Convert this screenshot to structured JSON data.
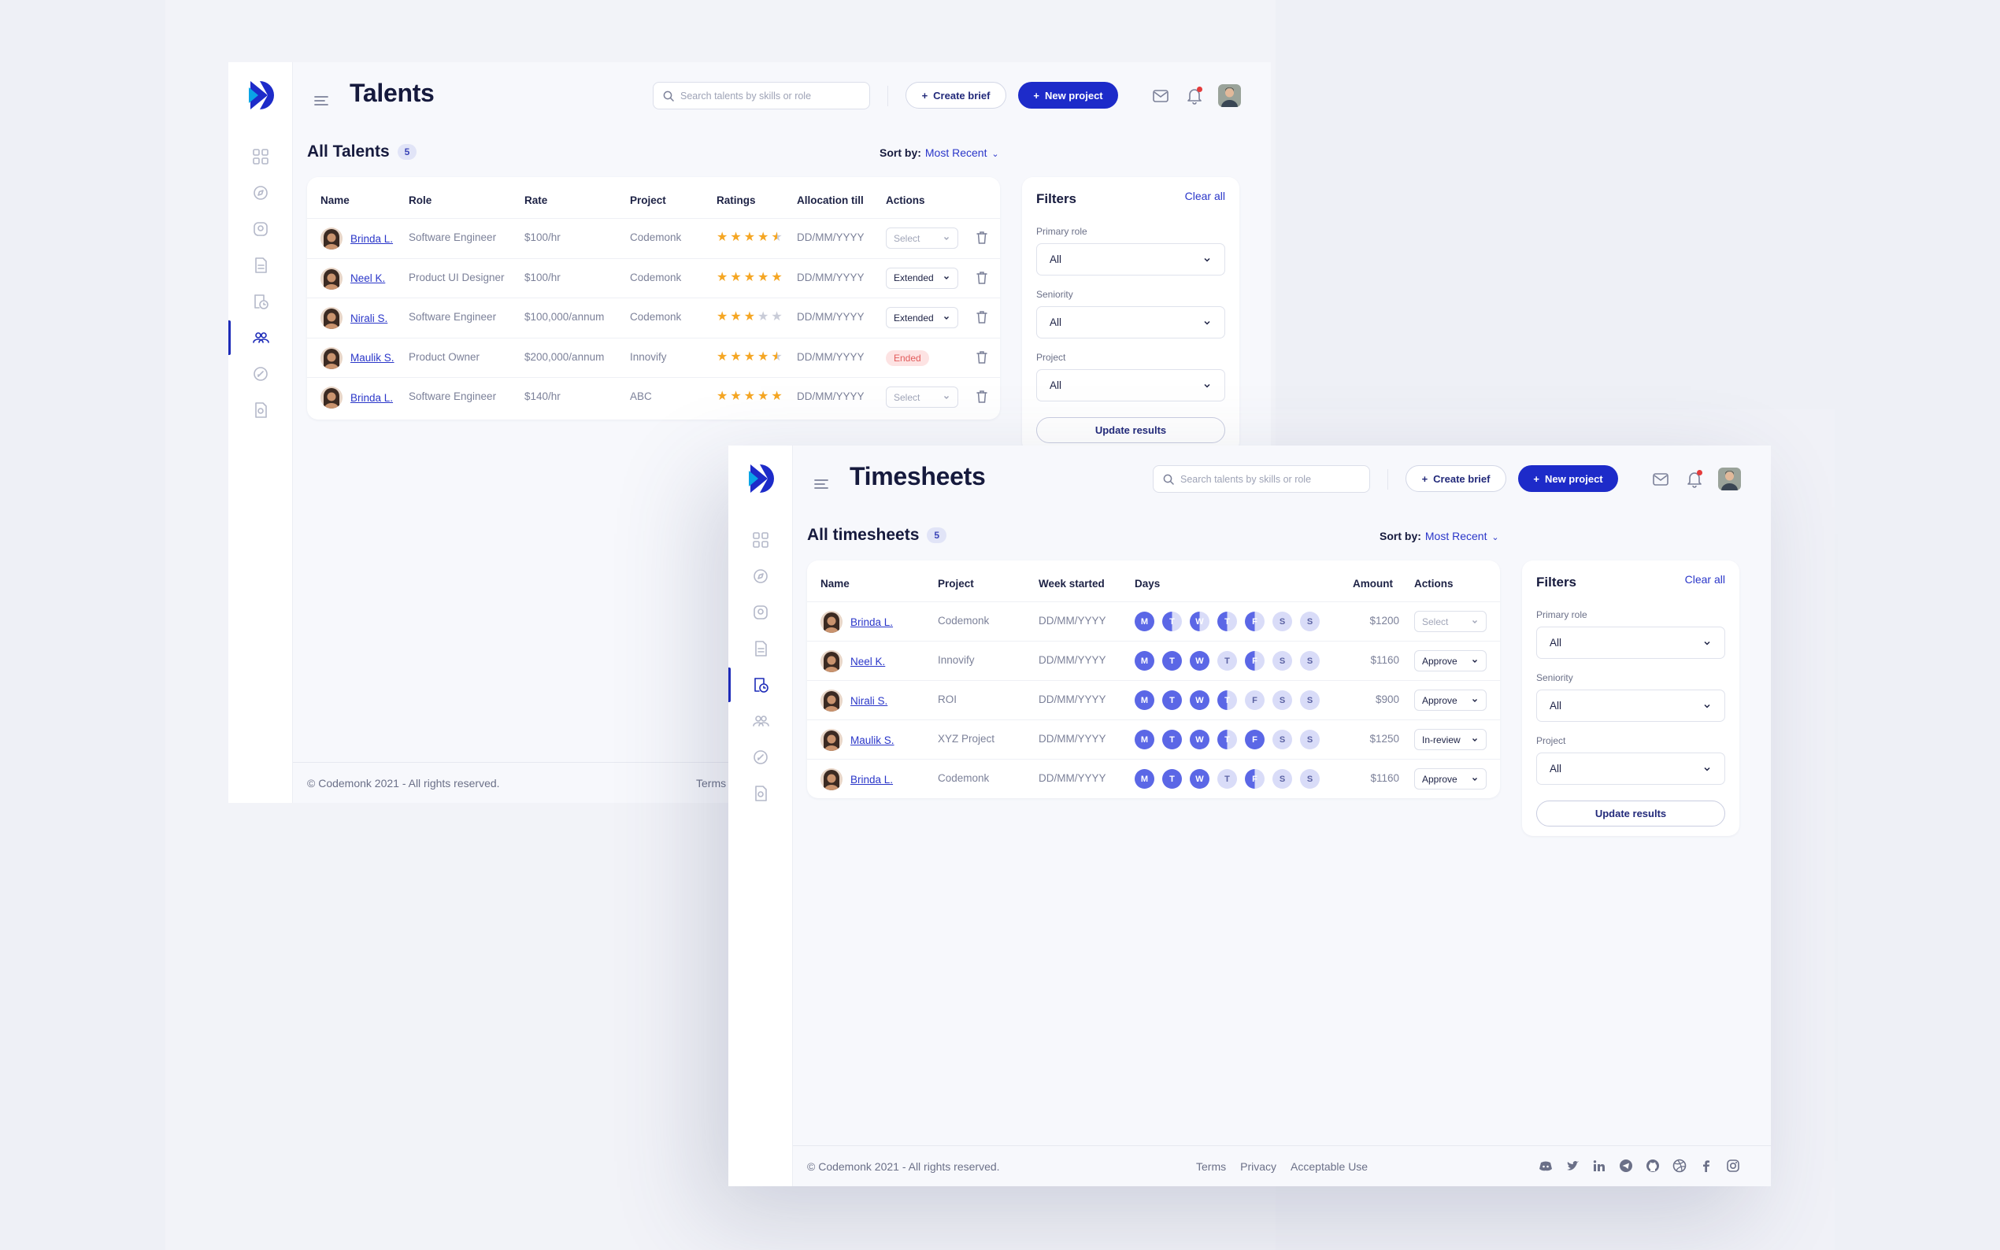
{
  "talents_window": {
    "title": "Talents",
    "search_placeholder": "Search talents by skills or role",
    "create_brief": "Create brief",
    "new_project": "New project",
    "section_title": "All Talents",
    "count": "5",
    "sort_label": "Sort by:",
    "sort_value": "Most Recent",
    "columns": [
      "Name",
      "Role",
      "Rate",
      "Project",
      "Ratings",
      "Allocation till",
      "Actions"
    ],
    "rows": [
      {
        "name": "Brinda L.",
        "role": "Software Engineer",
        "rate": "$100/hr",
        "project": "Codemonk",
        "rating": 4.5,
        "allocation": "DD/MM/YYYY",
        "action": "Select"
      },
      {
        "name": "Neel K.",
        "role": "Product UI Designer",
        "rate": "$100/hr",
        "project": "Codemonk",
        "rating": 5,
        "allocation": "DD/MM/YYYY",
        "action": "Extended"
      },
      {
        "name": "Nirali S.",
        "role": "Software Engineer",
        "rate": "$100,000/annum",
        "project": "Codemonk",
        "rating": 3,
        "allocation": "DD/MM/YYYY",
        "action": "Extended"
      },
      {
        "name": "Maulik S.",
        "role": "Product Owner",
        "rate": "$200,000/annum",
        "project": "Innovify",
        "rating": 4.5,
        "allocation": "DD/MM/YYYY",
        "action": "Ended"
      },
      {
        "name": "Brinda L.",
        "role": "Software Engineer",
        "rate": "$140/hr",
        "project": "ABC",
        "rating": 5,
        "allocation": "DD/MM/YYYY",
        "action": "Select"
      }
    ],
    "filters": {
      "title": "Filters",
      "clear": "Clear all",
      "primary_role_label": "Primary role",
      "primary_role_value": "All",
      "seniority_label": "Seniority",
      "seniority_value": "All",
      "project_label": "Project",
      "project_value": "All",
      "update": "Update results"
    },
    "footer_copy": "© Codemonk 2021 - All rights reserved.",
    "footer_terms": "Terms"
  },
  "timesheets_window": {
    "title": "Timesheets",
    "search_placeholder": "Search talents by skills or role",
    "create_brief": "Create brief",
    "new_project": "New project",
    "section_title": "All timesheets",
    "count": "5",
    "sort_label": "Sort by:",
    "sort_value": "Most Recent",
    "columns": [
      "Name",
      "Project",
      "Week started",
      "Days",
      "Amount",
      "Actions"
    ],
    "day_letters": [
      "M",
      "T",
      "W",
      "T",
      "F",
      "S",
      "S"
    ],
    "rows": [
      {
        "name": "Brinda L.",
        "project": "Codemonk",
        "week": "DD/MM/YYYY",
        "days": [
          "full",
          "half",
          "half",
          "half",
          "half",
          "empty",
          "empty"
        ],
        "amount": "$1200",
        "action": "Select"
      },
      {
        "name": "Neel K.",
        "project": "Innovify",
        "week": "DD/MM/YYYY",
        "days": [
          "full",
          "full",
          "full",
          "empty",
          "half",
          "empty",
          "empty"
        ],
        "amount": "$1160",
        "action": "Approve"
      },
      {
        "name": "Nirali S.",
        "project": "ROI",
        "week": "DD/MM/YYYY",
        "days": [
          "full",
          "full",
          "full",
          "half",
          "empty",
          "empty",
          "empty"
        ],
        "amount": "$900",
        "action": "Approve"
      },
      {
        "name": "Maulik S.",
        "project": "XYZ Project",
        "week": "DD/MM/YYYY",
        "days": [
          "full",
          "full",
          "full",
          "half",
          "full",
          "empty",
          "empty"
        ],
        "amount": "$1250",
        "action": "In-review"
      },
      {
        "name": "Brinda L.",
        "project": "Codemonk",
        "week": "DD/MM/YYYY",
        "days": [
          "full",
          "full",
          "full",
          "empty",
          "half",
          "empty",
          "empty"
        ],
        "amount": "$1160",
        "action": "Approve"
      }
    ],
    "filters": {
      "title": "Filters",
      "clear": "Clear all",
      "primary_role_label": "Primary role",
      "primary_role_value": "All",
      "seniority_label": "Seniority",
      "seniority_value": "All",
      "project_label": "Project",
      "project_value": "All",
      "update": "Update results"
    },
    "footer_copy": "© Codemonk 2021 - All rights reserved.",
    "footer_links": [
      "Terms",
      "Privacy",
      "Acceptable Use"
    ],
    "socials": [
      "discord-icon",
      "twitter-icon",
      "linkedin-icon",
      "telegram-icon",
      "github-icon",
      "dribbble-icon",
      "facebook-icon",
      "instagram-icon"
    ]
  },
  "colors": {
    "primary": "#1d2bc9",
    "link": "#2a36c9",
    "star": "#f5a623",
    "day_full": "#5b67e6",
    "day_empty": "#d9dcf8",
    "ended_bg": "#fde3e3",
    "ended_text": "#e25b5b"
  }
}
